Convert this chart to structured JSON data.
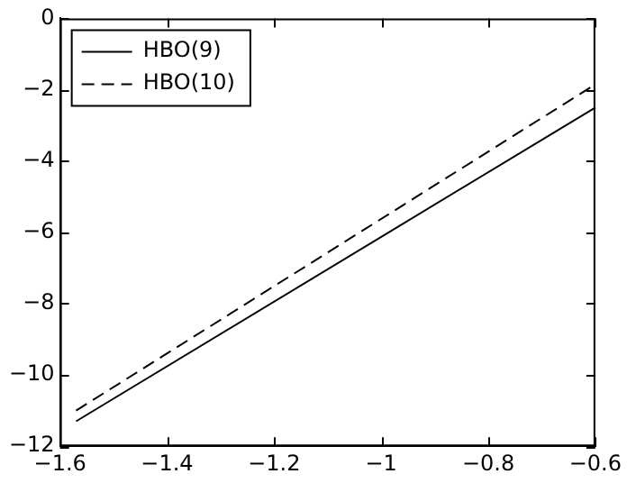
{
  "chart_data": {
    "type": "line",
    "x": [
      -1.57,
      -0.6
    ],
    "xlim": [
      -1.6,
      -0.6
    ],
    "xticks": [
      -1.6,
      -1.4,
      -1.2,
      -1,
      -0.8,
      -0.6
    ],
    "ylim": [
      -12,
      0
    ],
    "yticks": [
      -12,
      -10,
      -8,
      -6,
      -4,
      -2,
      0
    ],
    "grid": false,
    "legend": "top left",
    "marker": "none",
    "series": [
      {
        "name": "HBO(9)",
        "color": "#000000",
        "line_style": "solid",
        "values": [
          -11.3,
          -2.5
        ]
      },
      {
        "name": "HBO(10)",
        "color": "#000000",
        "line_style": "dashed",
        "values": [
          -11.0,
          -1.85
        ]
      }
    ]
  }
}
